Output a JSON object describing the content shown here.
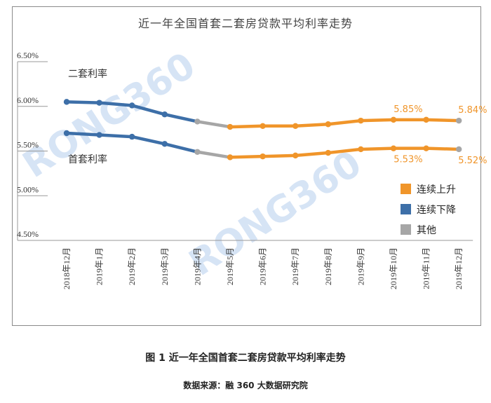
{
  "chart_title": "近一年全国首套二套房贷款平均利率走势",
  "figure_caption": "图 1  近一年全国首套二套房贷款平均利率走势",
  "source_note": "数据来源：融 360 大数据研究院",
  "watermark": "RONG360",
  "chart_data": {
    "type": "line",
    "categories": [
      "2018年12月",
      "2019年1月",
      "2019年2月",
      "2019年3月",
      "2019年4月",
      "2019年5月",
      "2019年6月",
      "2019年7月",
      "2019年8月",
      "2019年9月",
      "2019年10月",
      "2019年11月",
      "2019年12月"
    ],
    "ylim": [
      4.5,
      6.5
    ],
    "yticks": [
      "4.50%",
      "5.00%",
      "5.50%",
      "6.00%",
      "6.50%"
    ],
    "series": [
      {
        "name": "二套利率",
        "values": [
          6.05,
          6.04,
          6.01,
          5.91,
          5.83,
          5.77,
          5.78,
          5.78,
          5.8,
          5.84,
          5.85,
          5.85,
          5.84
        ]
      },
      {
        "name": "首套利率",
        "values": [
          5.7,
          5.68,
          5.66,
          5.58,
          5.49,
          5.43,
          5.44,
          5.45,
          5.48,
          5.52,
          5.53,
          5.53,
          5.52
        ]
      }
    ],
    "segment_colors": {
      "down": "#3d6fa8",
      "up": "#f0952a",
      "other": "#a6a6a6"
    },
    "segments": [
      {
        "from": 0,
        "to": 4,
        "type": "down"
      },
      {
        "from": 4,
        "to": 5,
        "type": "other"
      },
      {
        "from": 5,
        "to": 12,
        "type": "up"
      }
    ],
    "end_marker_type": "other",
    "data_labels": [
      {
        "series": 0,
        "index": 11,
        "text": "5.85%"
      },
      {
        "series": 0,
        "index": 12,
        "text": "5.84%"
      },
      {
        "series": 1,
        "index": 11,
        "text": "5.53%"
      },
      {
        "series": 1,
        "index": 12,
        "text": "5.52%"
      }
    ],
    "legend": [
      {
        "label": "连续上升",
        "type": "up"
      },
      {
        "label": "连续下降",
        "type": "down"
      },
      {
        "label": "其他",
        "type": "other"
      }
    ],
    "legend_position": "right",
    "grid": false
  }
}
